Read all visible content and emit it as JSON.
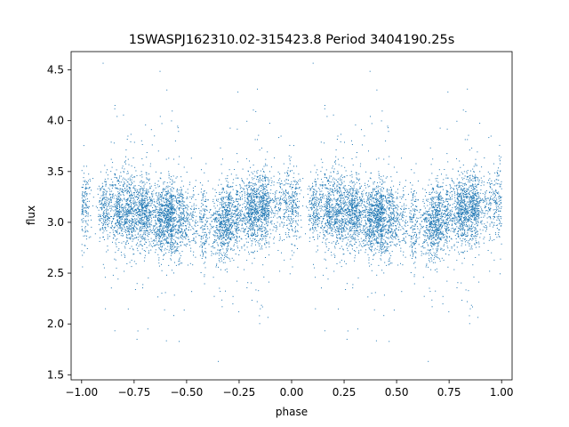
{
  "chart_data": {
    "type": "scatter",
    "title": "1SWASPJ162310.02-315423.8 Period 3404190.25s",
    "xlabel": "phase",
    "ylabel": "flux",
    "xlim": [
      -1.05,
      1.05
    ],
    "ylim": [
      1.45,
      4.68
    ],
    "x_ticks": [
      -1.0,
      -0.75,
      -0.5,
      -0.25,
      0.0,
      0.25,
      0.5,
      0.75,
      1.0
    ],
    "x_tick_labels": [
      "−1.00",
      "−0.75",
      "−0.50",
      "−0.25",
      "0.00",
      "0.25",
      "0.50",
      "0.75",
      "1.00"
    ],
    "y_ticks": [
      1.5,
      2.0,
      2.5,
      3.0,
      3.5,
      4.0,
      4.5
    ],
    "y_tick_labels": [
      "1.5",
      "2.0",
      "2.5",
      "3.0",
      "3.5",
      "4.0",
      "4.5"
    ],
    "grid": false,
    "legend": "none",
    "marker_color": "#1f77b4",
    "series": [
      {
        "x_range": [
          -1.0,
          1.0
        ],
        "y_center": 3.1,
        "symmetry": "x values repeat with offset 1.0 (phase folded twice)",
        "flux_profile": [
          {
            "phase": 0.0,
            "median": 3.15
          },
          {
            "phase": 0.1,
            "median": 3.15
          },
          {
            "phase": 0.25,
            "median": 3.12
          },
          {
            "phase": 0.35,
            "median": 3.05
          },
          {
            "phase": 0.5,
            "median": 3.02
          },
          {
            "phase": 0.62,
            "median": 2.95
          },
          {
            "phase": 0.68,
            "median": 3.0
          },
          {
            "phase": 0.8,
            "median": 3.1
          },
          {
            "phase": 0.95,
            "median": 3.2
          }
        ],
        "y_min": 1.57,
        "y_max": 4.62
      }
    ]
  }
}
